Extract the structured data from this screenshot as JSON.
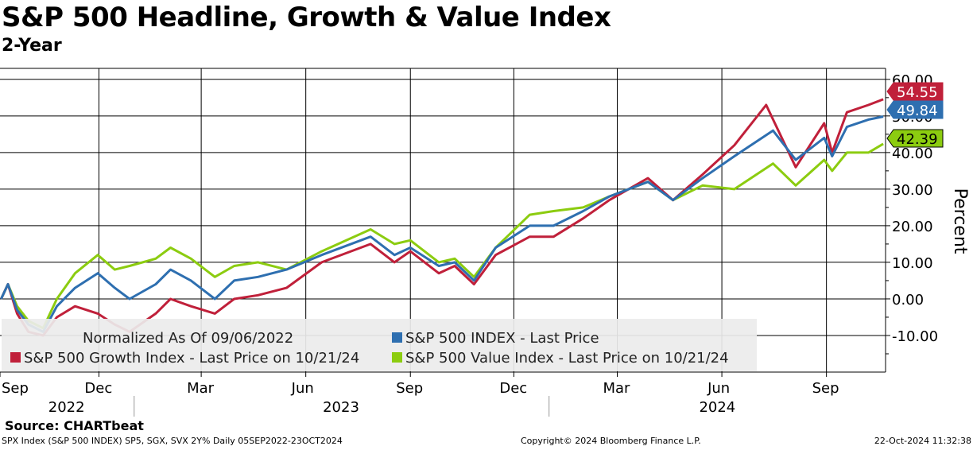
{
  "header": {
    "title": "S&P 500 Headline, Growth & Value Index",
    "subtitle": "2-Year"
  },
  "footer": {
    "source": "Source: CHARTbeat",
    "info": "SPX Index (S&P 500 INDEX) SP5, SGX, SVX 2Y% Daily 05SEP2022-23OCT2024",
    "copyright": "Copyright© 2024 Bloomberg Finance L.P.",
    "timestamp": "22-Oct-2024 11:32:38"
  },
  "colors": {
    "sp500": "#2e6fb0",
    "growth": "#c0203a",
    "value": "#8ccc10",
    "legend_bg": "#ececec",
    "grid": "#000000"
  },
  "chart_data": {
    "type": "line",
    "title": "S&P 500 Headline, Growth & Value Index",
    "subtitle": "2-Year",
    "ylabel": "Percent",
    "ylim": [
      -20,
      63
    ],
    "y_ticks": [
      "60.00",
      "50.00",
      "40.00",
      "30.00",
      "20.00",
      "10.00",
      "0.00",
      "-10.00"
    ],
    "y_tick_values": [
      60,
      50,
      40,
      30,
      20,
      10,
      0,
      -10
    ],
    "grid": true,
    "x_month_ticks": [
      {
        "label": "Sep",
        "date": "2022-09-01"
      },
      {
        "label": "Dec",
        "date": "2022-12-01"
      },
      {
        "label": "Mar",
        "date": "2023-03-01"
      },
      {
        "label": "Jun",
        "date": "2023-06-01"
      },
      {
        "label": "Sep",
        "date": "2023-09-01"
      },
      {
        "label": "Dec",
        "date": "2023-12-01"
      },
      {
        "label": "Mar",
        "date": "2024-03-01"
      },
      {
        "label": "Jun",
        "date": "2024-06-01"
      },
      {
        "label": "Sep",
        "date": "2024-09-01"
      }
    ],
    "x_year_labels": [
      {
        "label": "2022",
        "start": "2022-09-05",
        "end": "2022-12-31"
      },
      {
        "label": "2023",
        "start": "2023-01-01",
        "end": "2023-12-31"
      },
      {
        "label": "2024",
        "start": "2024-01-01",
        "end": "2024-10-23"
      }
    ],
    "xlim": [
      "2022-09-05",
      "2024-10-23"
    ],
    "legend": {
      "placement": "bottom-left",
      "entries": [
        {
          "label": "Normalized As Of 09/06/2022",
          "swatch": false
        },
        {
          "label": "S&P 500 INDEX - Last Price",
          "series": "sp500"
        },
        {
          "label": "S&P 500 Growth Index - Last Price on 10/21/24",
          "series": "growth"
        },
        {
          "label": "S&P 500 Value Index - Last Price on 10/21/24",
          "series": "value"
        }
      ]
    },
    "series": [
      {
        "key": "sp500",
        "name": "S&P 500 INDEX",
        "last_label": "49.84",
        "points": [
          [
            "2022-09-06",
            0
          ],
          [
            "2022-09-12",
            4
          ],
          [
            "2022-09-20",
            -3
          ],
          [
            "2022-09-30",
            -7
          ],
          [
            "2022-10-13",
            -9
          ],
          [
            "2022-10-25",
            -2
          ],
          [
            "2022-11-10",
            3
          ],
          [
            "2022-11-30",
            7
          ],
          [
            "2022-12-15",
            3
          ],
          [
            "2022-12-28",
            0
          ],
          [
            "2023-01-20",
            4
          ],
          [
            "2023-02-02",
            8
          ],
          [
            "2023-02-20",
            5
          ],
          [
            "2023-03-13",
            0
          ],
          [
            "2023-03-30",
            5
          ],
          [
            "2023-04-20",
            6
          ],
          [
            "2023-05-15",
            8
          ],
          [
            "2023-06-15",
            12
          ],
          [
            "2023-07-28",
            17
          ],
          [
            "2023-08-18",
            12
          ],
          [
            "2023-09-01",
            14
          ],
          [
            "2023-09-26",
            9
          ],
          [
            "2023-10-10",
            10
          ],
          [
            "2023-10-27",
            5
          ],
          [
            "2023-11-15",
            14
          ],
          [
            "2023-12-15",
            20
          ],
          [
            "2024-01-05",
            20
          ],
          [
            "2024-01-31",
            24
          ],
          [
            "2024-02-23",
            28
          ],
          [
            "2024-03-28",
            32
          ],
          [
            "2024-04-19",
            27
          ],
          [
            "2024-05-15",
            33
          ],
          [
            "2024-06-12",
            39
          ],
          [
            "2024-07-16",
            46
          ],
          [
            "2024-08-05",
            38
          ],
          [
            "2024-08-30",
            44
          ],
          [
            "2024-09-06",
            39
          ],
          [
            "2024-09-19",
            47
          ],
          [
            "2024-10-08",
            49
          ],
          [
            "2024-10-21",
            49.84
          ]
        ]
      },
      {
        "key": "growth",
        "name": "S&P 500 Growth Index",
        "last_label": "54.55",
        "points": [
          [
            "2022-09-06",
            0
          ],
          [
            "2022-09-12",
            4
          ],
          [
            "2022-09-20",
            -4
          ],
          [
            "2022-09-30",
            -9
          ],
          [
            "2022-10-13",
            -10
          ],
          [
            "2022-10-25",
            -5
          ],
          [
            "2022-11-10",
            -2
          ],
          [
            "2022-11-30",
            -4
          ],
          [
            "2022-12-15",
            -7
          ],
          [
            "2022-12-28",
            -9
          ],
          [
            "2023-01-20",
            -4
          ],
          [
            "2023-02-02",
            0
          ],
          [
            "2023-02-20",
            -2
          ],
          [
            "2023-03-13",
            -4
          ],
          [
            "2023-03-30",
            0
          ],
          [
            "2023-04-20",
            1
          ],
          [
            "2023-05-15",
            3
          ],
          [
            "2023-06-15",
            10
          ],
          [
            "2023-07-28",
            15
          ],
          [
            "2023-08-18",
            10
          ],
          [
            "2023-09-01",
            13
          ],
          [
            "2023-09-26",
            7
          ],
          [
            "2023-10-10",
            9
          ],
          [
            "2023-10-27",
            4
          ],
          [
            "2023-11-15",
            12
          ],
          [
            "2023-12-15",
            17
          ],
          [
            "2024-01-05",
            17
          ],
          [
            "2024-01-31",
            22
          ],
          [
            "2024-02-23",
            27
          ],
          [
            "2024-03-28",
            33
          ],
          [
            "2024-04-19",
            27
          ],
          [
            "2024-05-15",
            34
          ],
          [
            "2024-06-12",
            42
          ],
          [
            "2024-07-10",
            53
          ],
          [
            "2024-08-05",
            36
          ],
          [
            "2024-08-30",
            48
          ],
          [
            "2024-09-06",
            40
          ],
          [
            "2024-09-19",
            51
          ],
          [
            "2024-10-08",
            53
          ],
          [
            "2024-10-21",
            54.55
          ]
        ]
      },
      {
        "key": "value",
        "name": "S&P 500 Value Index",
        "last_label": "42.39",
        "points": [
          [
            "2022-09-06",
            0
          ],
          [
            "2022-09-12",
            4
          ],
          [
            "2022-09-20",
            -2
          ],
          [
            "2022-09-30",
            -6
          ],
          [
            "2022-10-13",
            -8
          ],
          [
            "2022-10-25",
            0
          ],
          [
            "2022-11-10",
            7
          ],
          [
            "2022-11-30",
            12
          ],
          [
            "2022-12-15",
            8
          ],
          [
            "2022-12-28",
            9
          ],
          [
            "2023-01-20",
            11
          ],
          [
            "2023-02-02",
            14
          ],
          [
            "2023-02-20",
            11
          ],
          [
            "2023-03-13",
            6
          ],
          [
            "2023-03-30",
            9
          ],
          [
            "2023-04-20",
            10
          ],
          [
            "2023-05-15",
            8
          ],
          [
            "2023-06-15",
            13
          ],
          [
            "2023-07-28",
            19
          ],
          [
            "2023-08-18",
            15
          ],
          [
            "2023-09-01",
            16
          ],
          [
            "2023-09-26",
            10
          ],
          [
            "2023-10-10",
            11
          ],
          [
            "2023-10-27",
            6
          ],
          [
            "2023-11-15",
            14
          ],
          [
            "2023-12-15",
            23
          ],
          [
            "2024-01-05",
            24
          ],
          [
            "2024-01-31",
            25
          ],
          [
            "2024-02-23",
            28
          ],
          [
            "2024-03-28",
            32
          ],
          [
            "2024-04-19",
            27
          ],
          [
            "2024-05-15",
            31
          ],
          [
            "2024-06-12",
            30
          ],
          [
            "2024-07-16",
            37
          ],
          [
            "2024-08-05",
            31
          ],
          [
            "2024-08-30",
            38
          ],
          [
            "2024-09-06",
            35
          ],
          [
            "2024-09-19",
            40
          ],
          [
            "2024-10-08",
            40
          ],
          [
            "2024-10-21",
            42.39
          ]
        ]
      }
    ]
  }
}
